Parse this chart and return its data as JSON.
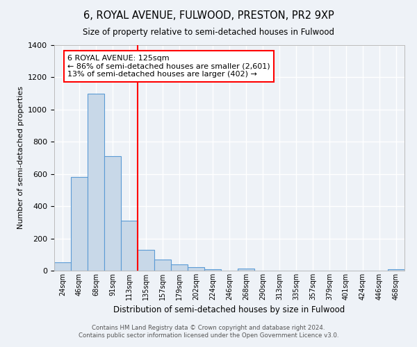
{
  "title": "6, ROYAL AVENUE, FULWOOD, PRESTON, PR2 9XP",
  "subtitle": "Size of property relative to semi-detached houses in Fulwood",
  "xlabel": "Distribution of semi-detached houses by size in Fulwood",
  "ylabel": "Number of semi-detached properties",
  "categories": [
    "24sqm",
    "46sqm",
    "68sqm",
    "91sqm",
    "113sqm",
    "135sqm",
    "157sqm",
    "179sqm",
    "202sqm",
    "224sqm",
    "246sqm",
    "268sqm",
    "290sqm",
    "313sqm",
    "335sqm",
    "357sqm",
    "379sqm",
    "401sqm",
    "424sqm",
    "446sqm",
    "468sqm"
  ],
  "values": [
    50,
    580,
    1100,
    710,
    310,
    130,
    70,
    38,
    20,
    10,
    0,
    15,
    0,
    0,
    0,
    0,
    0,
    0,
    0,
    0,
    10
  ],
  "bar_color": "#c8d8e8",
  "bar_edge_color": "#5b9bd5",
  "vline_color": "red",
  "annotation_line1": "6 ROYAL AVENUE: 125sqm",
  "annotation_line2": "← 86% of semi-detached houses are smaller (2,601)",
  "annotation_line3": "13% of semi-detached houses are larger (402) →",
  "annotation_box_color": "white",
  "annotation_box_edge_color": "red",
  "ylim": [
    0,
    1400
  ],
  "yticks": [
    0,
    200,
    400,
    600,
    800,
    1000,
    1200,
    1400
  ],
  "footer_line1": "Contains HM Land Registry data © Crown copyright and database right 2024.",
  "footer_line2": "Contains public sector information licensed under the Open Government Licence v3.0.",
  "bg_color": "#eef2f7",
  "grid_color": "white",
  "vline_pos": 4.5
}
